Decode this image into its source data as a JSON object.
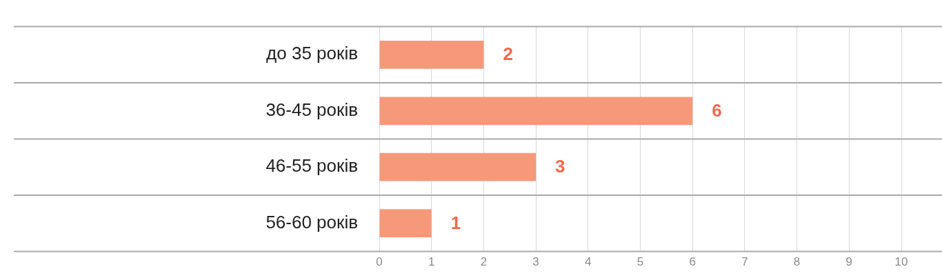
{
  "chart_data": {
    "type": "bar",
    "orientation": "horizontal",
    "categories": [
      "до 35 років",
      "36-45 років",
      "46-55 років",
      "56-60 років"
    ],
    "values": [
      2,
      6,
      3,
      1
    ],
    "color": "#f5997a",
    "xlim": [
      0,
      10
    ],
    "xticks": [
      0,
      1,
      2,
      3,
      4,
      5,
      6,
      7,
      8,
      9,
      10
    ],
    "grid": true,
    "data_labels": true
  }
}
